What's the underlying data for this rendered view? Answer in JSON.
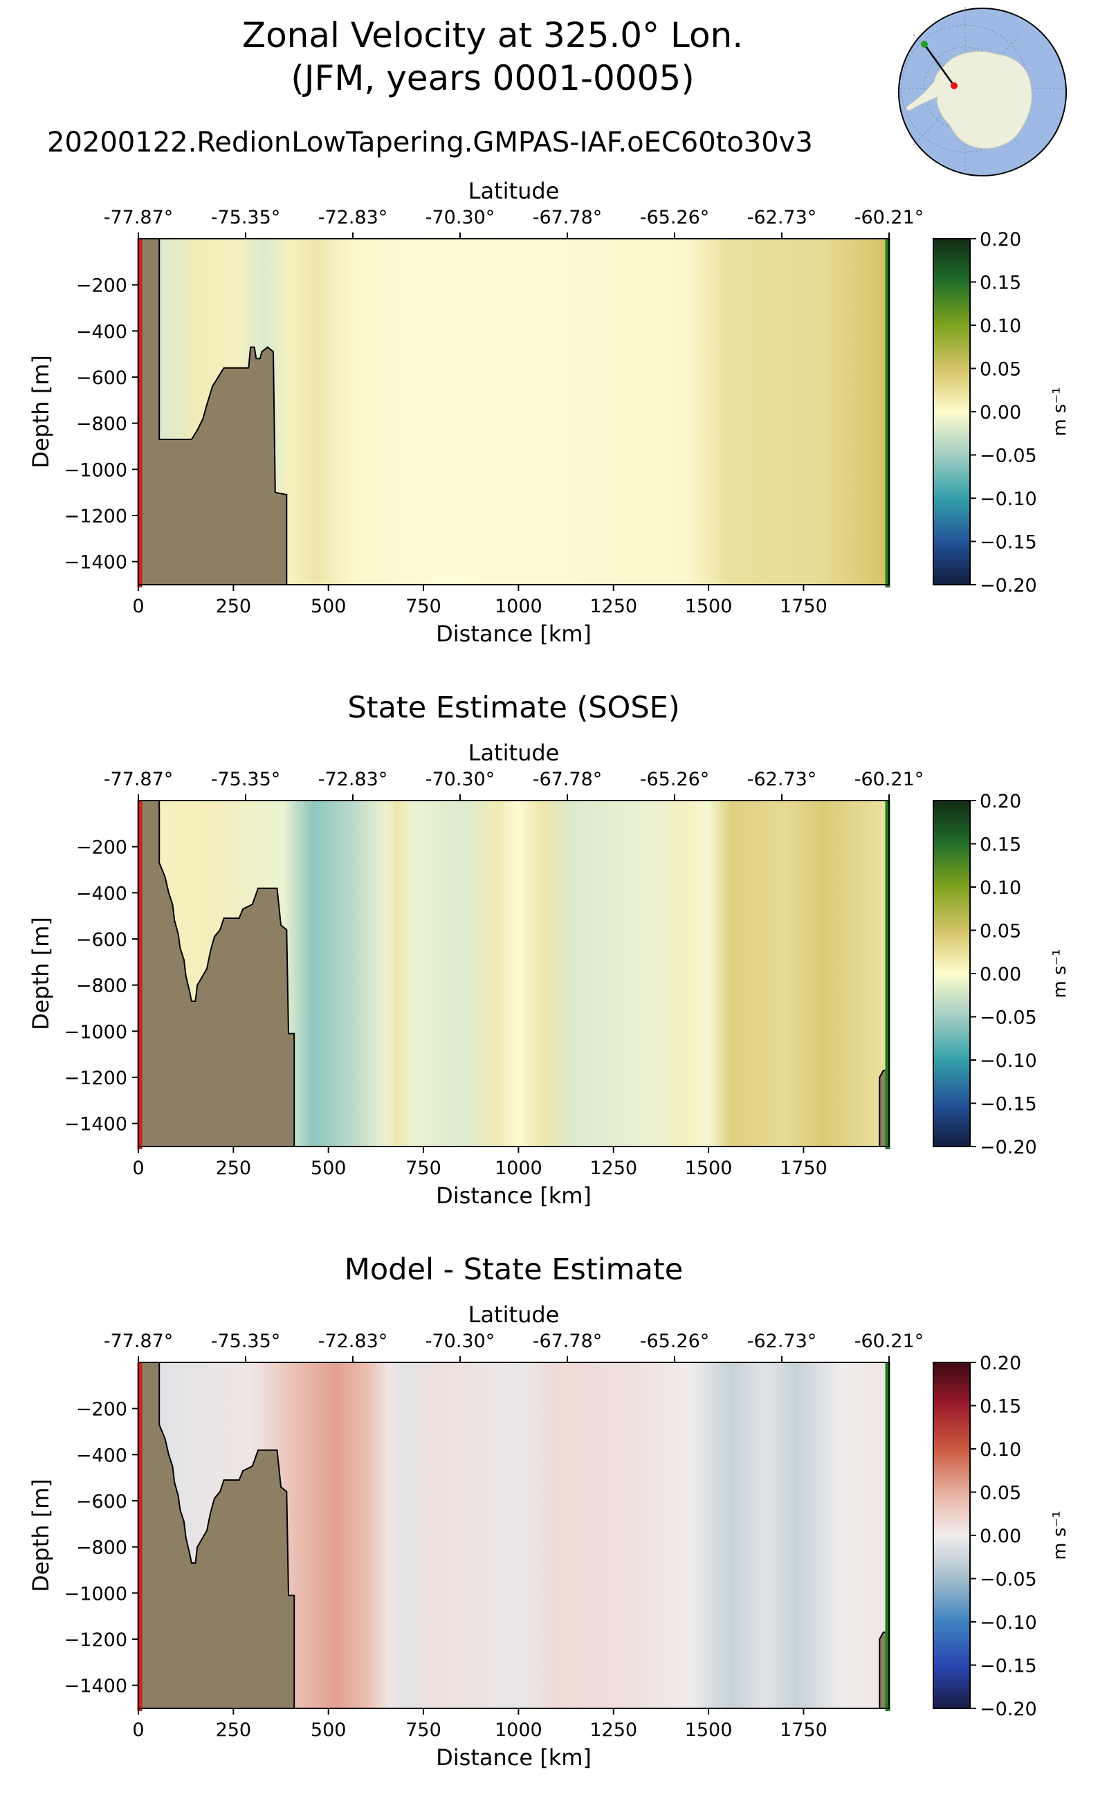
{
  "figure": {
    "title_line1": "Zonal Velocity at 325.0° Lon.",
    "title_line2": "(JFM, years 0001-0005)",
    "run_label": "20200122.RedionLowTapering.GMPAS-IAF.oEC60to30v3"
  },
  "inset_map": {
    "name": "Antarctic locator map",
    "start_color": "#1f9e1f",
    "end_color": "#ee1111"
  },
  "colors": {
    "land": "#8c7f63",
    "left_marker": "#d0201b",
    "right_marker": "#1e7d1e"
  },
  "chart_data": [
    {
      "type": "heatmap",
      "title": "",
      "top_axis_label": "Latitude",
      "latitude_ticks": [
        "-77.87°",
        "-75.35°",
        "-72.83°",
        "-70.30°",
        "-67.78°",
        "-65.26°",
        "-62.73°",
        "-60.21°"
      ],
      "xlabel": "Distance [km]",
      "ylabel": "Depth [m]",
      "x_ticks": [
        0,
        250,
        500,
        750,
        1000,
        1250,
        1500,
        1750
      ],
      "y_ticks": [
        -200,
        -400,
        -600,
        -800,
        -1000,
        -1200,
        -1400
      ],
      "xlim": [
        0,
        1975
      ],
      "ylim": [
        -1500,
        0
      ],
      "colorbar": {
        "label": "m s⁻¹",
        "ticks": [
          "0.20",
          "0.15",
          "0.10",
          "0.05",
          "0.00",
          "−0.05",
          "−0.10",
          "−0.15",
          "−0.20"
        ],
        "cmap": "delta"
      },
      "field_profile": [
        {
          "x": 60,
          "v": -0.02
        },
        {
          "x": 160,
          "v": 0.015
        },
        {
          "x": 260,
          "v": 0.01
        },
        {
          "x": 330,
          "v": -0.02
        },
        {
          "x": 400,
          "v": 0.01
        },
        {
          "x": 470,
          "v": 0.02
        },
        {
          "x": 560,
          "v": 0.005
        },
        {
          "x": 800,
          "v": 0.0
        },
        {
          "x": 1200,
          "v": 0.003
        },
        {
          "x": 1450,
          "v": 0.005
        },
        {
          "x": 1550,
          "v": 0.025
        },
        {
          "x": 1800,
          "v": 0.03
        },
        {
          "x": 1960,
          "v": 0.05
        }
      ],
      "bathymetry": [
        [
          0,
          0
        ],
        [
          55,
          0
        ],
        [
          55,
          -870
        ],
        [
          140,
          -870
        ],
        [
          155,
          -830
        ],
        [
          170,
          -780
        ],
        [
          180,
          -720
        ],
        [
          195,
          -640
        ],
        [
          225,
          -560
        ],
        [
          290,
          -560
        ],
        [
          295,
          -470
        ],
        [
          305,
          -470
        ],
        [
          310,
          -520
        ],
        [
          320,
          -520
        ],
        [
          325,
          -490
        ],
        [
          340,
          -470
        ],
        [
          355,
          -490
        ],
        [
          360,
          -1100
        ],
        [
          390,
          -1110
        ],
        [
          390,
          -1500
        ],
        [
          0,
          -1500
        ]
      ],
      "bathymetry_right": []
    },
    {
      "type": "heatmap",
      "title": "State Estimate (SOSE)",
      "top_axis_label": "Latitude",
      "latitude_ticks": [
        "-77.87°",
        "-75.35°",
        "-72.83°",
        "-70.30°",
        "-67.78°",
        "-65.26°",
        "-62.73°",
        "-60.21°"
      ],
      "xlabel": "Distance [km]",
      "ylabel": "Depth [m]",
      "x_ticks": [
        0,
        250,
        500,
        750,
        1000,
        1250,
        1500,
        1750
      ],
      "y_ticks": [
        -200,
        -400,
        -600,
        -800,
        -1000,
        -1200,
        -1400
      ],
      "xlim": [
        0,
        1975
      ],
      "ylim": [
        -1500,
        0
      ],
      "colorbar": {
        "label": "m s⁻¹",
        "ticks": [
          "0.20",
          "0.15",
          "0.10",
          "0.05",
          "0.00",
          "−0.05",
          "−0.10",
          "−0.15",
          "−0.20"
        ],
        "cmap": "delta"
      },
      "field_profile": [
        {
          "x": 60,
          "v": 0.01
        },
        {
          "x": 200,
          "v": 0.012
        },
        {
          "x": 380,
          "v": -0.01
        },
        {
          "x": 460,
          "v": -0.06
        },
        {
          "x": 560,
          "v": -0.04
        },
        {
          "x": 650,
          "v": -0.01
        },
        {
          "x": 680,
          "v": 0.02
        },
        {
          "x": 720,
          "v": -0.01
        },
        {
          "x": 850,
          "v": -0.02
        },
        {
          "x": 950,
          "v": 0.015
        },
        {
          "x": 1000,
          "v": 0.0
        },
        {
          "x": 1060,
          "v": 0.02
        },
        {
          "x": 1150,
          "v": -0.02
        },
        {
          "x": 1350,
          "v": -0.01
        },
        {
          "x": 1440,
          "v": 0.01
        },
        {
          "x": 1500,
          "v": -0.005
        },
        {
          "x": 1560,
          "v": 0.04
        },
        {
          "x": 1700,
          "v": 0.03
        },
        {
          "x": 1800,
          "v": 0.045
        },
        {
          "x": 1960,
          "v": 0.025
        }
      ],
      "bathymetry": [
        [
          0,
          0
        ],
        [
          55,
          0
        ],
        [
          55,
          -270
        ],
        [
          70,
          -330
        ],
        [
          80,
          -400
        ],
        [
          90,
          -450
        ],
        [
          95,
          -520
        ],
        [
          105,
          -580
        ],
        [
          110,
          -640
        ],
        [
          120,
          -690
        ],
        [
          125,
          -760
        ],
        [
          135,
          -830
        ],
        [
          140,
          -870
        ],
        [
          150,
          -870
        ],
        [
          155,
          -800
        ],
        [
          180,
          -730
        ],
        [
          190,
          -650
        ],
        [
          200,
          -590
        ],
        [
          215,
          -560
        ],
        [
          225,
          -510
        ],
        [
          265,
          -510
        ],
        [
          275,
          -470
        ],
        [
          300,
          -450
        ],
        [
          315,
          -380
        ],
        [
          365,
          -380
        ],
        [
          375,
          -540
        ],
        [
          390,
          -560
        ],
        [
          395,
          -1010
        ],
        [
          410,
          -1010
        ],
        [
          410,
          -1500
        ],
        [
          0,
          -1500
        ]
      ],
      "bathymetry_right": [
        [
          1950,
          -1500
        ],
        [
          1950,
          -1200
        ],
        [
          1960,
          -1170
        ],
        [
          1975,
          -1170
        ],
        [
          1975,
          -1500
        ]
      ]
    },
    {
      "type": "heatmap",
      "title": "Model - State Estimate",
      "top_axis_label": "Latitude",
      "latitude_ticks": [
        "-77.87°",
        "-75.35°",
        "-72.83°",
        "-70.30°",
        "-67.78°",
        "-65.26°",
        "-62.73°",
        "-60.21°"
      ],
      "xlabel": "Distance [km]",
      "ylabel": "Depth [m]",
      "x_ticks": [
        0,
        250,
        500,
        750,
        1000,
        1250,
        1500,
        1750
      ],
      "y_ticks": [
        -200,
        -400,
        -600,
        -800,
        -1000,
        -1200,
        -1400
      ],
      "xlim": [
        0,
        1975
      ],
      "ylim": [
        -1500,
        0
      ],
      "colorbar": {
        "label": "m s⁻¹",
        "ticks": [
          "0.20",
          "0.15",
          "0.10",
          "0.05",
          "0.00",
          "−0.05",
          "−0.10",
          "−0.15",
          "−0.20"
        ],
        "cmap": "balance"
      },
      "field_profile": [
        {
          "x": 60,
          "v": -0.01
        },
        {
          "x": 300,
          "v": 0.005
        },
        {
          "x": 420,
          "v": 0.04
        },
        {
          "x": 520,
          "v": 0.06
        },
        {
          "x": 600,
          "v": 0.04
        },
        {
          "x": 660,
          "v": 0.005
        },
        {
          "x": 700,
          "v": -0.01
        },
        {
          "x": 800,
          "v": 0.01
        },
        {
          "x": 1000,
          "v": -0.005
        },
        {
          "x": 1100,
          "v": 0.015
        },
        {
          "x": 1300,
          "v": 0.01
        },
        {
          "x": 1450,
          "v": 0.0
        },
        {
          "x": 1560,
          "v": -0.03
        },
        {
          "x": 1650,
          "v": -0.01
        },
        {
          "x": 1730,
          "v": -0.03
        },
        {
          "x": 1850,
          "v": 0.0
        },
        {
          "x": 1960,
          "v": 0.005
        }
      ],
      "bathymetry": [
        [
          0,
          0
        ],
        [
          55,
          0
        ],
        [
          55,
          -270
        ],
        [
          70,
          -330
        ],
        [
          80,
          -400
        ],
        [
          90,
          -450
        ],
        [
          95,
          -520
        ],
        [
          105,
          -580
        ],
        [
          110,
          -640
        ],
        [
          120,
          -690
        ],
        [
          125,
          -760
        ],
        [
          135,
          -830
        ],
        [
          140,
          -870
        ],
        [
          150,
          -870
        ],
        [
          155,
          -800
        ],
        [
          180,
          -730
        ],
        [
          190,
          -650
        ],
        [
          200,
          -590
        ],
        [
          215,
          -560
        ],
        [
          225,
          -510
        ],
        [
          265,
          -510
        ],
        [
          275,
          -470
        ],
        [
          300,
          -450
        ],
        [
          315,
          -380
        ],
        [
          365,
          -380
        ],
        [
          375,
          -540
        ],
        [
          390,
          -560
        ],
        [
          395,
          -1010
        ],
        [
          410,
          -1010
        ],
        [
          410,
          -1500
        ],
        [
          0,
          -1500
        ]
      ],
      "bathymetry_right": [
        [
          1950,
          -1500
        ],
        [
          1950,
          -1200
        ],
        [
          1960,
          -1170
        ],
        [
          1975,
          -1170
        ],
        [
          1975,
          -1500
        ]
      ]
    }
  ]
}
